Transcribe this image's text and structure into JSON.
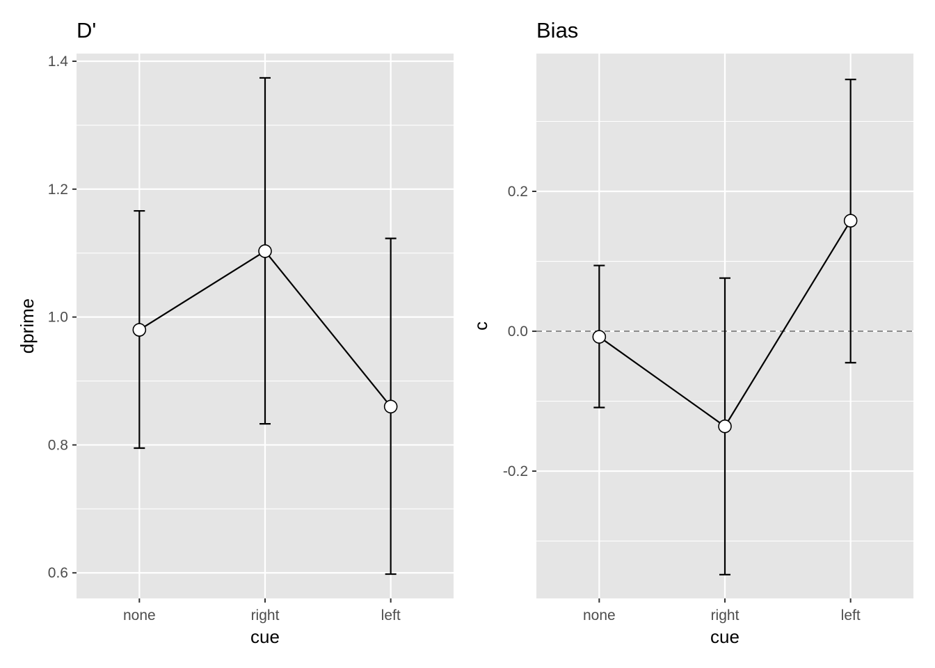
{
  "chart_data": [
    {
      "type": "line",
      "title": "D'",
      "xlabel": "cue",
      "ylabel": "dprime",
      "categories": [
        "none",
        "right",
        "left"
      ],
      "values": [
        0.98,
        1.103,
        0.86
      ],
      "error_low": [
        0.795,
        0.833,
        0.598
      ],
      "error_high": [
        1.166,
        1.374,
        1.123
      ],
      "ylim": [
        0.56,
        1.412
      ],
      "yticks": [
        0.6,
        0.8,
        1.0,
        1.2,
        1.4
      ],
      "ytick_labels": [
        "0.6",
        "0.8",
        "1.0",
        "1.2",
        "1.4"
      ],
      "grid": true
    },
    {
      "type": "line",
      "title": "Bias",
      "xlabel": "cue",
      "ylabel": "c",
      "categories": [
        "none",
        "right",
        "left"
      ],
      "values": [
        -0.008,
        -0.136,
        0.158
      ],
      "error_low": [
        -0.109,
        -0.348,
        -0.045
      ],
      "error_high": [
        0.094,
        0.076,
        0.36
      ],
      "ylim": [
        -0.382,
        0.397
      ],
      "yticks": [
        -0.2,
        0.0,
        0.2
      ],
      "ytick_labels": [
        "-0.2",
        "0.0",
        "0.2"
      ],
      "reference_line": 0,
      "grid": true
    }
  ]
}
